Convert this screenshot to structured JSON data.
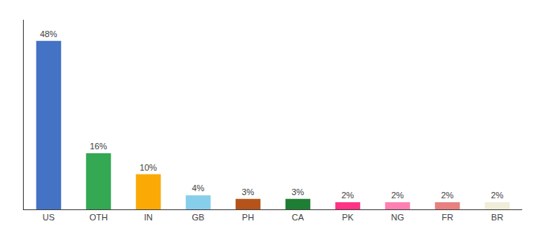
{
  "chart_data": {
    "type": "bar",
    "categories": [
      "US",
      "OTH",
      "IN",
      "GB",
      "PH",
      "CA",
      "PK",
      "NG",
      "FR",
      "BR"
    ],
    "values": [
      48,
      16,
      10,
      4,
      3,
      3,
      2,
      2,
      2,
      2
    ],
    "value_labels": [
      "48%",
      "16%",
      "10%",
      "4%",
      "3%",
      "3%",
      "2%",
      "2%",
      "2%",
      "2%"
    ],
    "colors": [
      "#4472C4",
      "#34A853",
      "#FBAA05",
      "#87CEEB",
      "#B5531A",
      "#1E7E34",
      "#FF3385",
      "#FF80B0",
      "#E88080",
      "#F0EDD8"
    ],
    "ylim": [
      0,
      54
    ],
    "grid": false,
    "tick_labels": "x",
    "data_labels": true
  }
}
